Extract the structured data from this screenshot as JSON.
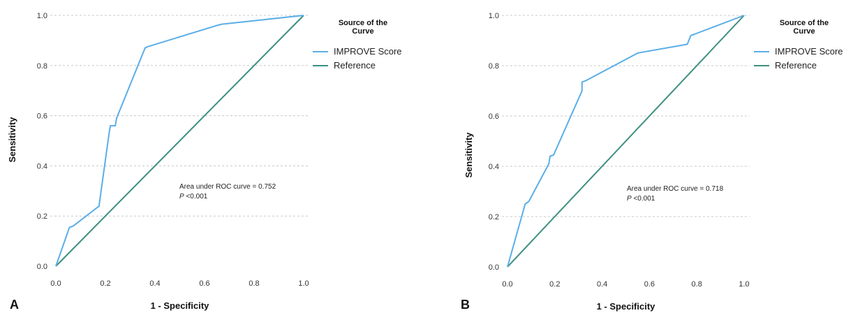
{
  "chart_data": [
    {
      "type": "line",
      "panel_label": "A",
      "xlabel": "1 - Specificity",
      "ylabel": "Sensitivity",
      "xlim": [
        0,
        1
      ],
      "ylim": [
        0,
        1
      ],
      "x_ticks": [
        "0.0",
        "0.2",
        "0.4",
        "0.6",
        "0.8",
        "1.0"
      ],
      "y_ticks": [
        "0.0",
        "0.2",
        "0.4",
        "0.6",
        "0.8",
        "1.0"
      ],
      "grid": "horizontal dotted",
      "legend": {
        "title": "Source of the Curve",
        "placement": "top-right outside",
        "entries": [
          "IMPROVE Score",
          "Reference"
        ]
      },
      "annotation": {
        "line1": "Area under ROC curve = 0.752",
        "line2_italic": "P",
        "line2_rest": " <0.001"
      },
      "series": [
        {
          "name": "IMPROVE Score",
          "color": "#5aaee8",
          "points": [
            [
              0.0,
              0.0
            ],
            [
              0.055,
              0.155
            ],
            [
              0.07,
              0.16
            ],
            [
              0.175,
              0.24
            ],
            [
              0.175,
              0.245
            ],
            [
              0.215,
              0.53
            ],
            [
              0.22,
              0.56
            ],
            [
              0.24,
              0.56
            ],
            [
              0.245,
              0.59
            ],
            [
              0.36,
              0.87
            ],
            [
              0.37,
              0.875
            ],
            [
              0.65,
              0.96
            ],
            [
              0.67,
              0.965
            ],
            [
              1.0,
              1.0
            ]
          ]
        },
        {
          "name": "Reference",
          "color": "#3d8f80",
          "points": [
            [
              0,
              0
            ],
            [
              1,
              1
            ]
          ]
        }
      ]
    },
    {
      "type": "line",
      "panel_label": "B",
      "xlabel": "1 - Specificity",
      "ylabel": "Sensitivity",
      "xlim": [
        0,
        1
      ],
      "ylim": [
        0,
        1
      ],
      "x_ticks": [
        "0.0",
        "0.2",
        "0.4",
        "0.6",
        "0.8",
        "1.0"
      ],
      "y_ticks": [
        "0.0",
        "0.2",
        "0.4",
        "0.6",
        "0.8",
        "1.0"
      ],
      "grid": "horizontal dotted",
      "legend": {
        "title": "Source of the Curve",
        "placement": "top-right outside",
        "entries": [
          "IMPROVE Score",
          "Reference"
        ]
      },
      "annotation": {
        "line1": "Area under ROC curve = 0.718",
        "line2_italic": "P",
        "line2_rest": " <0.001"
      },
      "series": [
        {
          "name": "IMPROVE Score",
          "color": "#5aaee8",
          "points": [
            [
              0.0,
              0.0
            ],
            [
              0.075,
              0.25
            ],
            [
              0.09,
              0.26
            ],
            [
              0.175,
              0.41
            ],
            [
              0.18,
              0.44
            ],
            [
              0.195,
              0.445
            ],
            [
              0.315,
              0.7
            ],
            [
              0.315,
              0.735
            ],
            [
              0.33,
              0.74
            ],
            [
              0.55,
              0.85
            ],
            [
              0.56,
              0.852
            ],
            [
              0.76,
              0.885
            ],
            [
              0.775,
              0.92
            ],
            [
              0.79,
              0.925
            ],
            [
              1.0,
              1.0
            ]
          ]
        },
        {
          "name": "Reference",
          "color": "#3d8f80",
          "points": [
            [
              0,
              0
            ],
            [
              1,
              1
            ]
          ]
        }
      ]
    }
  ]
}
